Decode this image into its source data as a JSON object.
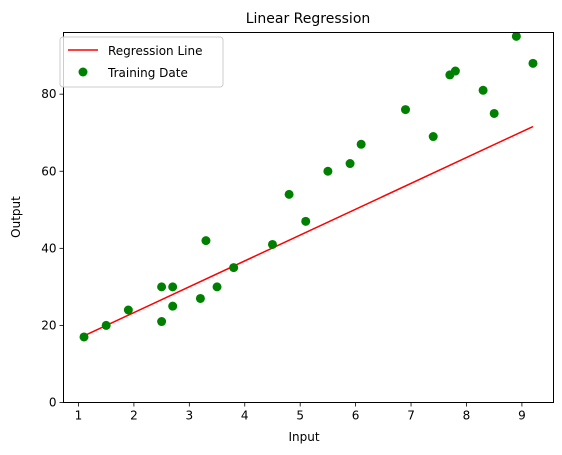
{
  "chart_data": {
    "type": "scatter",
    "title": "Linear Regression",
    "xlabel": "Input",
    "ylabel": "Output",
    "xlim": [
      0.73,
      9.57
    ],
    "ylim": [
      0,
      96
    ],
    "xticks": [
      1,
      2,
      3,
      4,
      5,
      6,
      7,
      8,
      9
    ],
    "yticks": [
      0,
      20,
      40,
      60,
      80
    ],
    "grid": false,
    "legend_position": "upper-left",
    "series": [
      {
        "name": "Regression Line",
        "kind": "line",
        "color": "#ff0000",
        "x": [
          1.1,
          9.2
        ],
        "y": [
          17.3,
          71.6
        ]
      },
      {
        "name": "Training Date",
        "kind": "scatter",
        "color": "#008000",
        "x": [
          1.1,
          1.5,
          1.9,
          2.5,
          2.5,
          2.7,
          2.7,
          3.2,
          3.3,
          3.5,
          3.8,
          4.5,
          4.8,
          5.1,
          5.5,
          5.9,
          6.1,
          6.9,
          7.4,
          7.7,
          7.8,
          8.3,
          8.5,
          8.9,
          9.2
        ],
        "y": [
          17,
          20,
          24,
          30,
          21,
          30,
          25,
          27,
          42,
          30,
          35,
          41,
          54,
          47,
          60,
          62,
          67,
          76,
          69,
          85,
          86,
          81,
          75,
          95,
          88
        ]
      }
    ]
  }
}
